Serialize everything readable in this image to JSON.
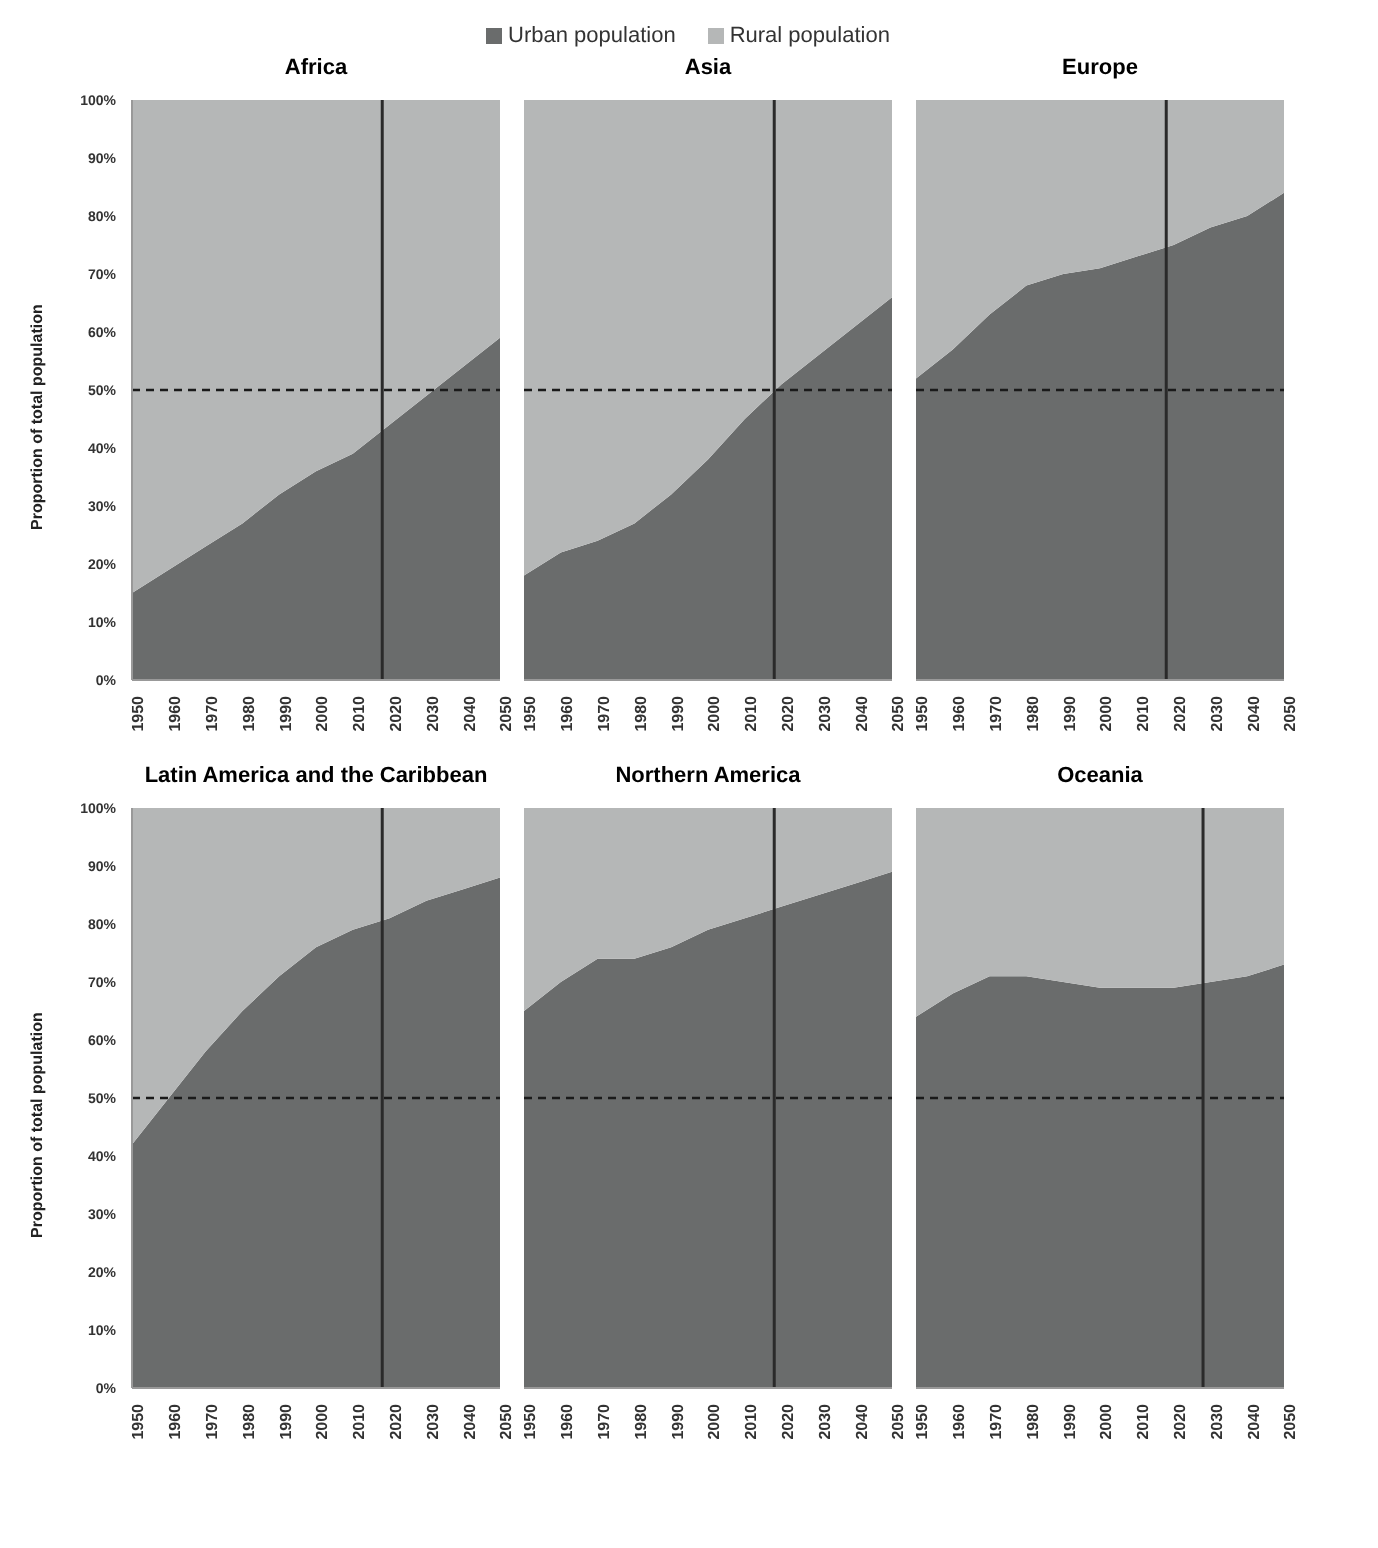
{
  "chart_data": [
    {
      "type": "area",
      "title": "Africa",
      "ylabel": "Proportion of total population",
      "stacked": true,
      "legend": "top",
      "x": [
        1950,
        1960,
        1970,
        1980,
        1990,
        2000,
        2010,
        2020,
        2030,
        2040,
        2050
      ],
      "series": [
        {
          "name": "Urban population",
          "color": "#6a6c6c",
          "values": [
            15,
            19,
            23,
            27,
            32,
            36,
            39,
            44,
            49,
            54,
            59
          ]
        },
        {
          "name": "Rural population",
          "color": "#b5b7b7",
          "values": [
            85,
            81,
            77,
            73,
            68,
            64,
            61,
            56,
            51,
            46,
            41
          ]
        }
      ],
      "xlim": [
        1950,
        2050
      ],
      "xticks": [
        1950,
        1960,
        1970,
        1980,
        1990,
        2000,
        2010,
        2020,
        2030,
        2040,
        2050
      ],
      "ylim": [
        0,
        100
      ],
      "yticks": [
        {
          "value": 0,
          "label": "0%"
        },
        {
          "value": 10,
          "label": "10%"
        },
        {
          "value": 20,
          "label": "20%"
        },
        {
          "value": 30,
          "label": "30%"
        },
        {
          "value": 40,
          "label": "40%"
        },
        {
          "value": 50,
          "label": "50%"
        },
        {
          "value": 60,
          "label": "60%"
        },
        {
          "value": 70,
          "label": "70%"
        },
        {
          "value": 80,
          "label": "80%"
        },
        {
          "value": 90,
          "label": "90%"
        },
        {
          "value": 100,
          "label": "100%"
        }
      ],
      "ref_lines": [
        {
          "axis": "y",
          "value": 50,
          "color": "#1a1a1a",
          "line_style": "dashed"
        },
        {
          "axis": "x",
          "value": 2018,
          "color": "#2a2a2a",
          "line_style": "solid"
        }
      ]
    },
    {
      "type": "area",
      "title": "Asia",
      "stacked": true,
      "tick_labels": "x",
      "x": [
        1950,
        1960,
        1970,
        1980,
        1990,
        2000,
        2010,
        2020,
        2030,
        2040,
        2050
      ],
      "series": [
        {
          "color": "#6a6c6c",
          "values": [
            18,
            22,
            24,
            27,
            32,
            38,
            45,
            51,
            56,
            61,
            66
          ]
        },
        {
          "color": "#b5b7b7",
          "values": [
            82,
            78,
            76,
            73,
            68,
            62,
            55,
            49,
            44,
            39,
            34
          ]
        }
      ],
      "xlim": [
        1950,
        2050
      ],
      "xticks": [
        1950,
        1960,
        1970,
        1980,
        1990,
        2000,
        2010,
        2020,
        2030,
        2040,
        2050
      ],
      "ylim": [
        0,
        100
      ],
      "ref_lines": [
        {
          "axis": "y",
          "value": 50,
          "color": "#1a1a1a",
          "line_style": "dashed"
        },
        {
          "axis": "x",
          "value": 2018,
          "color": "#2a2a2a",
          "line_style": "solid"
        }
      ]
    },
    {
      "type": "area",
      "title": "Europe",
      "stacked": true,
      "tick_labels": "x",
      "x": [
        1950,
        1960,
        1970,
        1980,
        1990,
        2000,
        2010,
        2020,
        2030,
        2040,
        2050
      ],
      "series": [
        {
          "color": "#6a6c6c",
          "values": [
            52,
            57,
            63,
            68,
            70,
            71,
            73,
            75,
            78,
            80,
            84
          ]
        },
        {
          "color": "#b5b7b7",
          "values": [
            48,
            43,
            37,
            32,
            30,
            29,
            27,
            25,
            22,
            20,
            16
          ]
        }
      ],
      "xlim": [
        1950,
        2050
      ],
      "xticks": [
        1950,
        1960,
        1970,
        1980,
        1990,
        2000,
        2010,
        2020,
        2030,
        2040,
        2050
      ],
      "ylim": [
        0,
        100
      ],
      "ref_lines": [
        {
          "axis": "y",
          "value": 50,
          "color": "#1a1a1a",
          "line_style": "dashed"
        },
        {
          "axis": "x",
          "value": 2018,
          "color": "#2a2a2a",
          "line_style": "solid"
        }
      ]
    },
    {
      "type": "area",
      "title": "Latin America and the Caribbean",
      "ylabel": "Proportion of total population",
      "stacked": true,
      "x": [
        1950,
        1960,
        1970,
        1980,
        1990,
        2000,
        2010,
        2020,
        2030,
        2040,
        2050
      ],
      "series": [
        {
          "color": "#6a6c6c",
          "values": [
            42,
            50,
            58,
            65,
            71,
            76,
            79,
            81,
            84,
            86,
            88
          ]
        },
        {
          "color": "#b5b7b7",
          "values": [
            58,
            50,
            42,
            35,
            29,
            24,
            21,
            19,
            16,
            14,
            12
          ]
        }
      ],
      "xlim": [
        1950,
        2050
      ],
      "xticks": [
        1950,
        1960,
        1970,
        1980,
        1990,
        2000,
        2010,
        2020,
        2030,
        2040,
        2050
      ],
      "ylim": [
        0,
        100
      ],
      "yticks": [
        {
          "value": 0,
          "label": "0%"
        },
        {
          "value": 10,
          "label": "10%"
        },
        {
          "value": 20,
          "label": "20%"
        },
        {
          "value": 30,
          "label": "30%"
        },
        {
          "value": 40,
          "label": "40%"
        },
        {
          "value": 50,
          "label": "50%"
        },
        {
          "value": 60,
          "label": "60%"
        },
        {
          "value": 70,
          "label": "70%"
        },
        {
          "value": 80,
          "label": "80%"
        },
        {
          "value": 90,
          "label": "90%"
        },
        {
          "value": 100,
          "label": "100%"
        }
      ],
      "ref_lines": [
        {
          "axis": "y",
          "value": 50,
          "color": "#1a1a1a",
          "line_style": "dashed"
        },
        {
          "axis": "x",
          "value": 2018,
          "color": "#2a2a2a",
          "line_style": "solid"
        }
      ]
    },
    {
      "type": "area",
      "title": "Northern America",
      "stacked": true,
      "tick_labels": "x",
      "x": [
        1950,
        1960,
        1970,
        1980,
        1990,
        2000,
        2010,
        2020,
        2030,
        2040,
        2050
      ],
      "series": [
        {
          "color": "#6a6c6c",
          "values": [
            65,
            70,
            74,
            74,
            76,
            79,
            81,
            83,
            85,
            87,
            89
          ]
        },
        {
          "color": "#b5b7b7",
          "values": [
            35,
            30,
            26,
            26,
            24,
            21,
            19,
            17,
            15,
            13,
            11
          ]
        }
      ],
      "xlim": [
        1950,
        2050
      ],
      "xticks": [
        1950,
        1960,
        1970,
        1980,
        1990,
        2000,
        2010,
        2020,
        2030,
        2040,
        2050
      ],
      "ylim": [
        0,
        100
      ],
      "ref_lines": [
        {
          "axis": "y",
          "value": 50,
          "color": "#1a1a1a",
          "line_style": "dashed"
        },
        {
          "axis": "x",
          "value": 2018,
          "color": "#2a2a2a",
          "line_style": "solid"
        }
      ]
    },
    {
      "type": "area",
      "title": "Oceania",
      "stacked": true,
      "tick_labels": "x",
      "x": [
        1950,
        1960,
        1970,
        1980,
        1990,
        2000,
        2010,
        2020,
        2030,
        2040,
        2050
      ],
      "series": [
        {
          "color": "#6a6c6c",
          "values": [
            64,
            68,
            71,
            71,
            70,
            69,
            69,
            69,
            70,
            71,
            73
          ]
        },
        {
          "color": "#b5b7b7",
          "values": [
            36,
            32,
            29,
            29,
            30,
            31,
            31,
            31,
            30,
            29,
            27
          ]
        }
      ],
      "xlim": [
        1950,
        2050
      ],
      "xticks": [
        1950,
        1960,
        1970,
        1980,
        1990,
        2000,
        2010,
        2020,
        2030,
        2040,
        2050
      ],
      "ylim": [
        0,
        100
      ],
      "ref_lines": [
        {
          "axis": "y",
          "value": 50,
          "color": "#1a1a1a",
          "line_style": "dashed"
        },
        {
          "axis": "x",
          "value": 2028,
          "color": "#2a2a2a",
          "line_style": "solid"
        }
      ]
    }
  ]
}
